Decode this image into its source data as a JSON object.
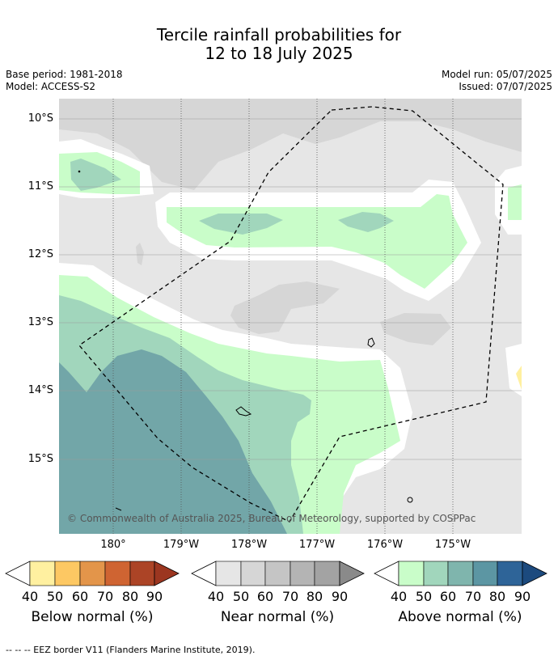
{
  "title_line1": "Tercile rainfall probabilities for",
  "title_line2": "12 to 18 July 2025",
  "base_period": "Base period: 1981-2018",
  "model": "Model: ACCESS-S2",
  "model_run": "Model run: 05/07/2025",
  "issued": "Issued: 07/07/2025",
  "lat_labels": [
    "10°S",
    "11°S",
    "12°S",
    "13°S",
    "14°S",
    "15°S"
  ],
  "lon_labels": [
    "180°",
    "179°W",
    "178°W",
    "177°W",
    "176°W",
    "175°W"
  ],
  "copyright": "© Commonwealth of Australia 2025, Bureau of Meteorology, supported by COSPPac",
  "colorbars": [
    {
      "label": "Below normal (%)",
      "ticks": [
        "40",
        "50",
        "60",
        "70",
        "80",
        "90"
      ],
      "colors": [
        "#fff0a0",
        "#fdc863",
        "#e3954a",
        "#cf6432",
        "#ac4426",
        "#9c3620"
      ]
    },
    {
      "label": "Near normal (%)",
      "ticks": [
        "40",
        "50",
        "60",
        "70",
        "80",
        "90"
      ],
      "colors": [
        "#e6e6e6",
        "#d6d6d6",
        "#c5c5c5",
        "#b4b4b4",
        "#a3a3a3",
        "#8a8a8a"
      ]
    },
    {
      "label": "Above normal (%)",
      "ticks": [
        "40",
        "50",
        "60",
        "70",
        "80",
        "90"
      ],
      "colors": [
        "#c9fdc9",
        "#a1d6bc",
        "#7fb5ad",
        "#5c96a3",
        "#2e6498",
        "#1c4a7e"
      ]
    }
  ],
  "footer": "--  --  -- EEZ border V11 (Flanders Marine Institute, 2019)."
}
